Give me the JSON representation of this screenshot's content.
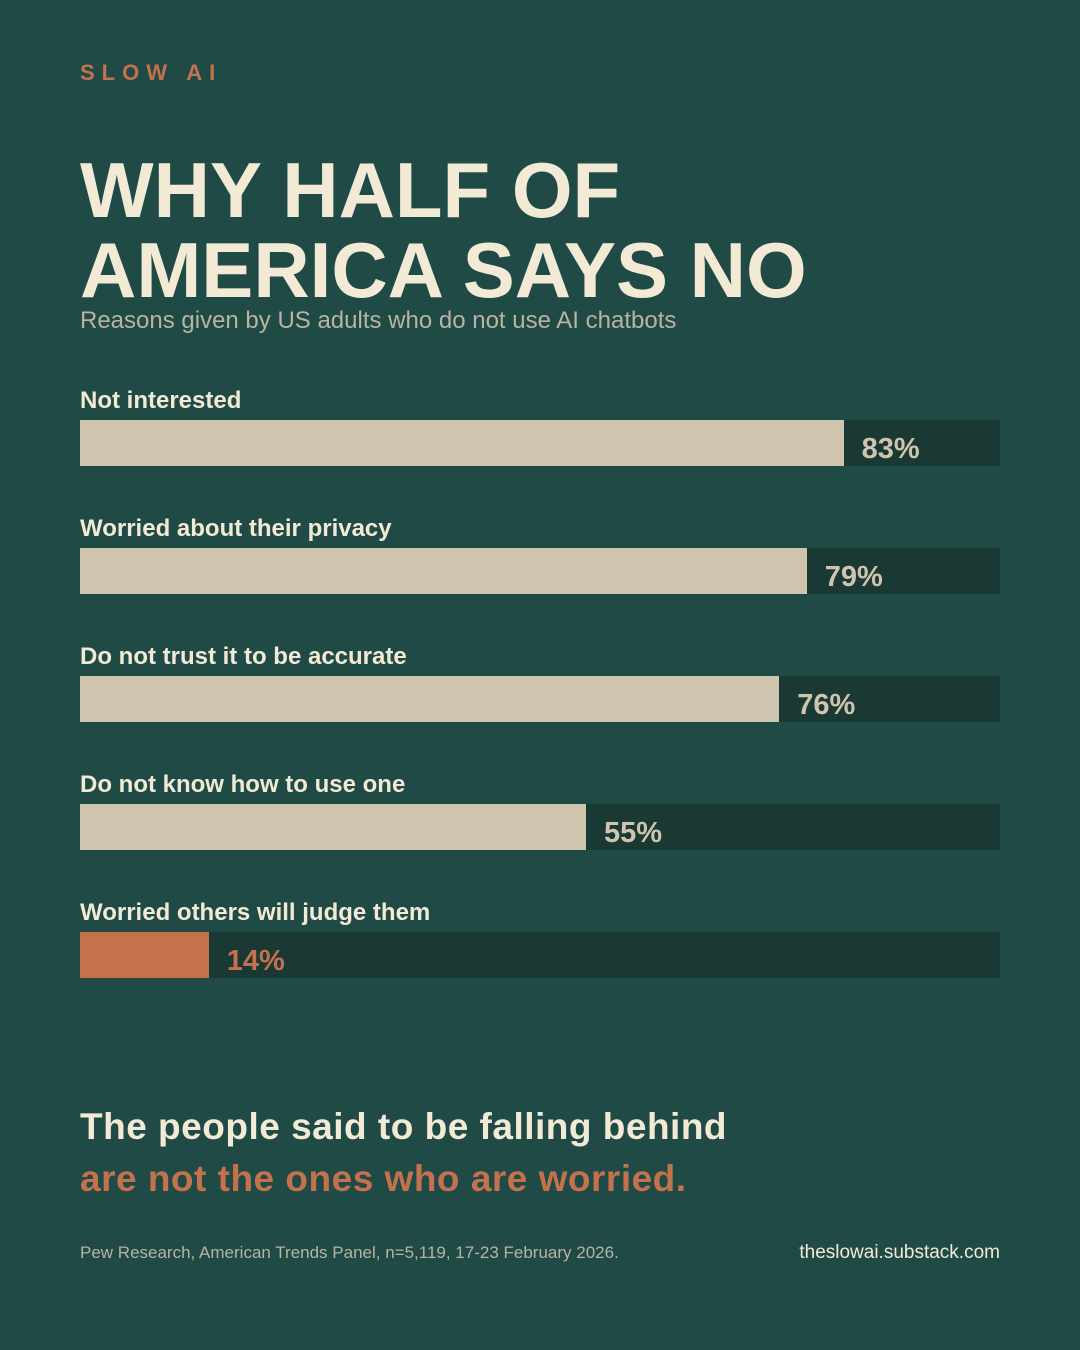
{
  "chart_data": {
    "type": "bar",
    "orientation": "horizontal",
    "brand": "SLOW AI",
    "title": "WHY HALF OF AMERICA SAYS NO",
    "subtitle": "Reasons given by US adults who do not use AI chatbots",
    "categories": [
      "Not interested",
      "Worried about their privacy",
      "Do not trust it to be accurate",
      "Do not know how to use one",
      "Worried others will judge them"
    ],
    "values": [
      83,
      79,
      76,
      55,
      14
    ],
    "value_labels": [
      "83%",
      "79%",
      "76%",
      "55%",
      "14%"
    ],
    "colors": [
      "#cfc4ae",
      "#cfc4ae",
      "#cfc4ae",
      "#cfc4ae",
      "#c4714e"
    ],
    "xlim": [
      0,
      100
    ],
    "takeaway_line1": "The people said to be falling behind",
    "takeaway_line2": "are not the ones who are worried.",
    "source": "Pew Research, American Trends Panel, n=5,119, 17-23 February 2026.",
    "site": "theslowai.substack.com"
  }
}
